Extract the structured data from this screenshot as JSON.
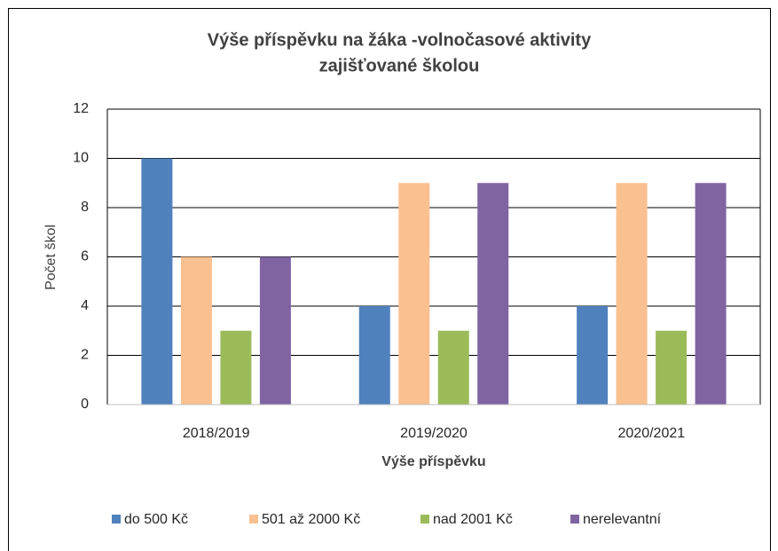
{
  "chart_data": {
    "type": "bar",
    "title": [
      "Výše příspěvku na žáka -volnočasové aktivity",
      "zajišťované školou"
    ],
    "x_label": "Výše příspěvku",
    "y_label": "Počet škol",
    "categories": [
      "2018/2019",
      "2019/2020",
      "2020/2021"
    ],
    "series": [
      {
        "name": "do 500 Kč",
        "color": "#4f81bd",
        "values": [
          10,
          4,
          4
        ]
      },
      {
        "name": "501 až 2000 Kč",
        "color": "#fac090",
        "values": [
          6,
          9,
          9
        ]
      },
      {
        "name": "nad 2001 Kč",
        "color": "#9bbb59",
        "values": [
          3,
          3,
          3
        ]
      },
      {
        "name": "nerelevantní",
        "color": "#8064a2",
        "values": [
          6,
          9,
          9
        ]
      }
    ],
    "ylim": [
      0,
      12
    ],
    "yticks": [
      0,
      2,
      4,
      6,
      8,
      10,
      12
    ],
    "grid": true,
    "legend": "bottom"
  }
}
